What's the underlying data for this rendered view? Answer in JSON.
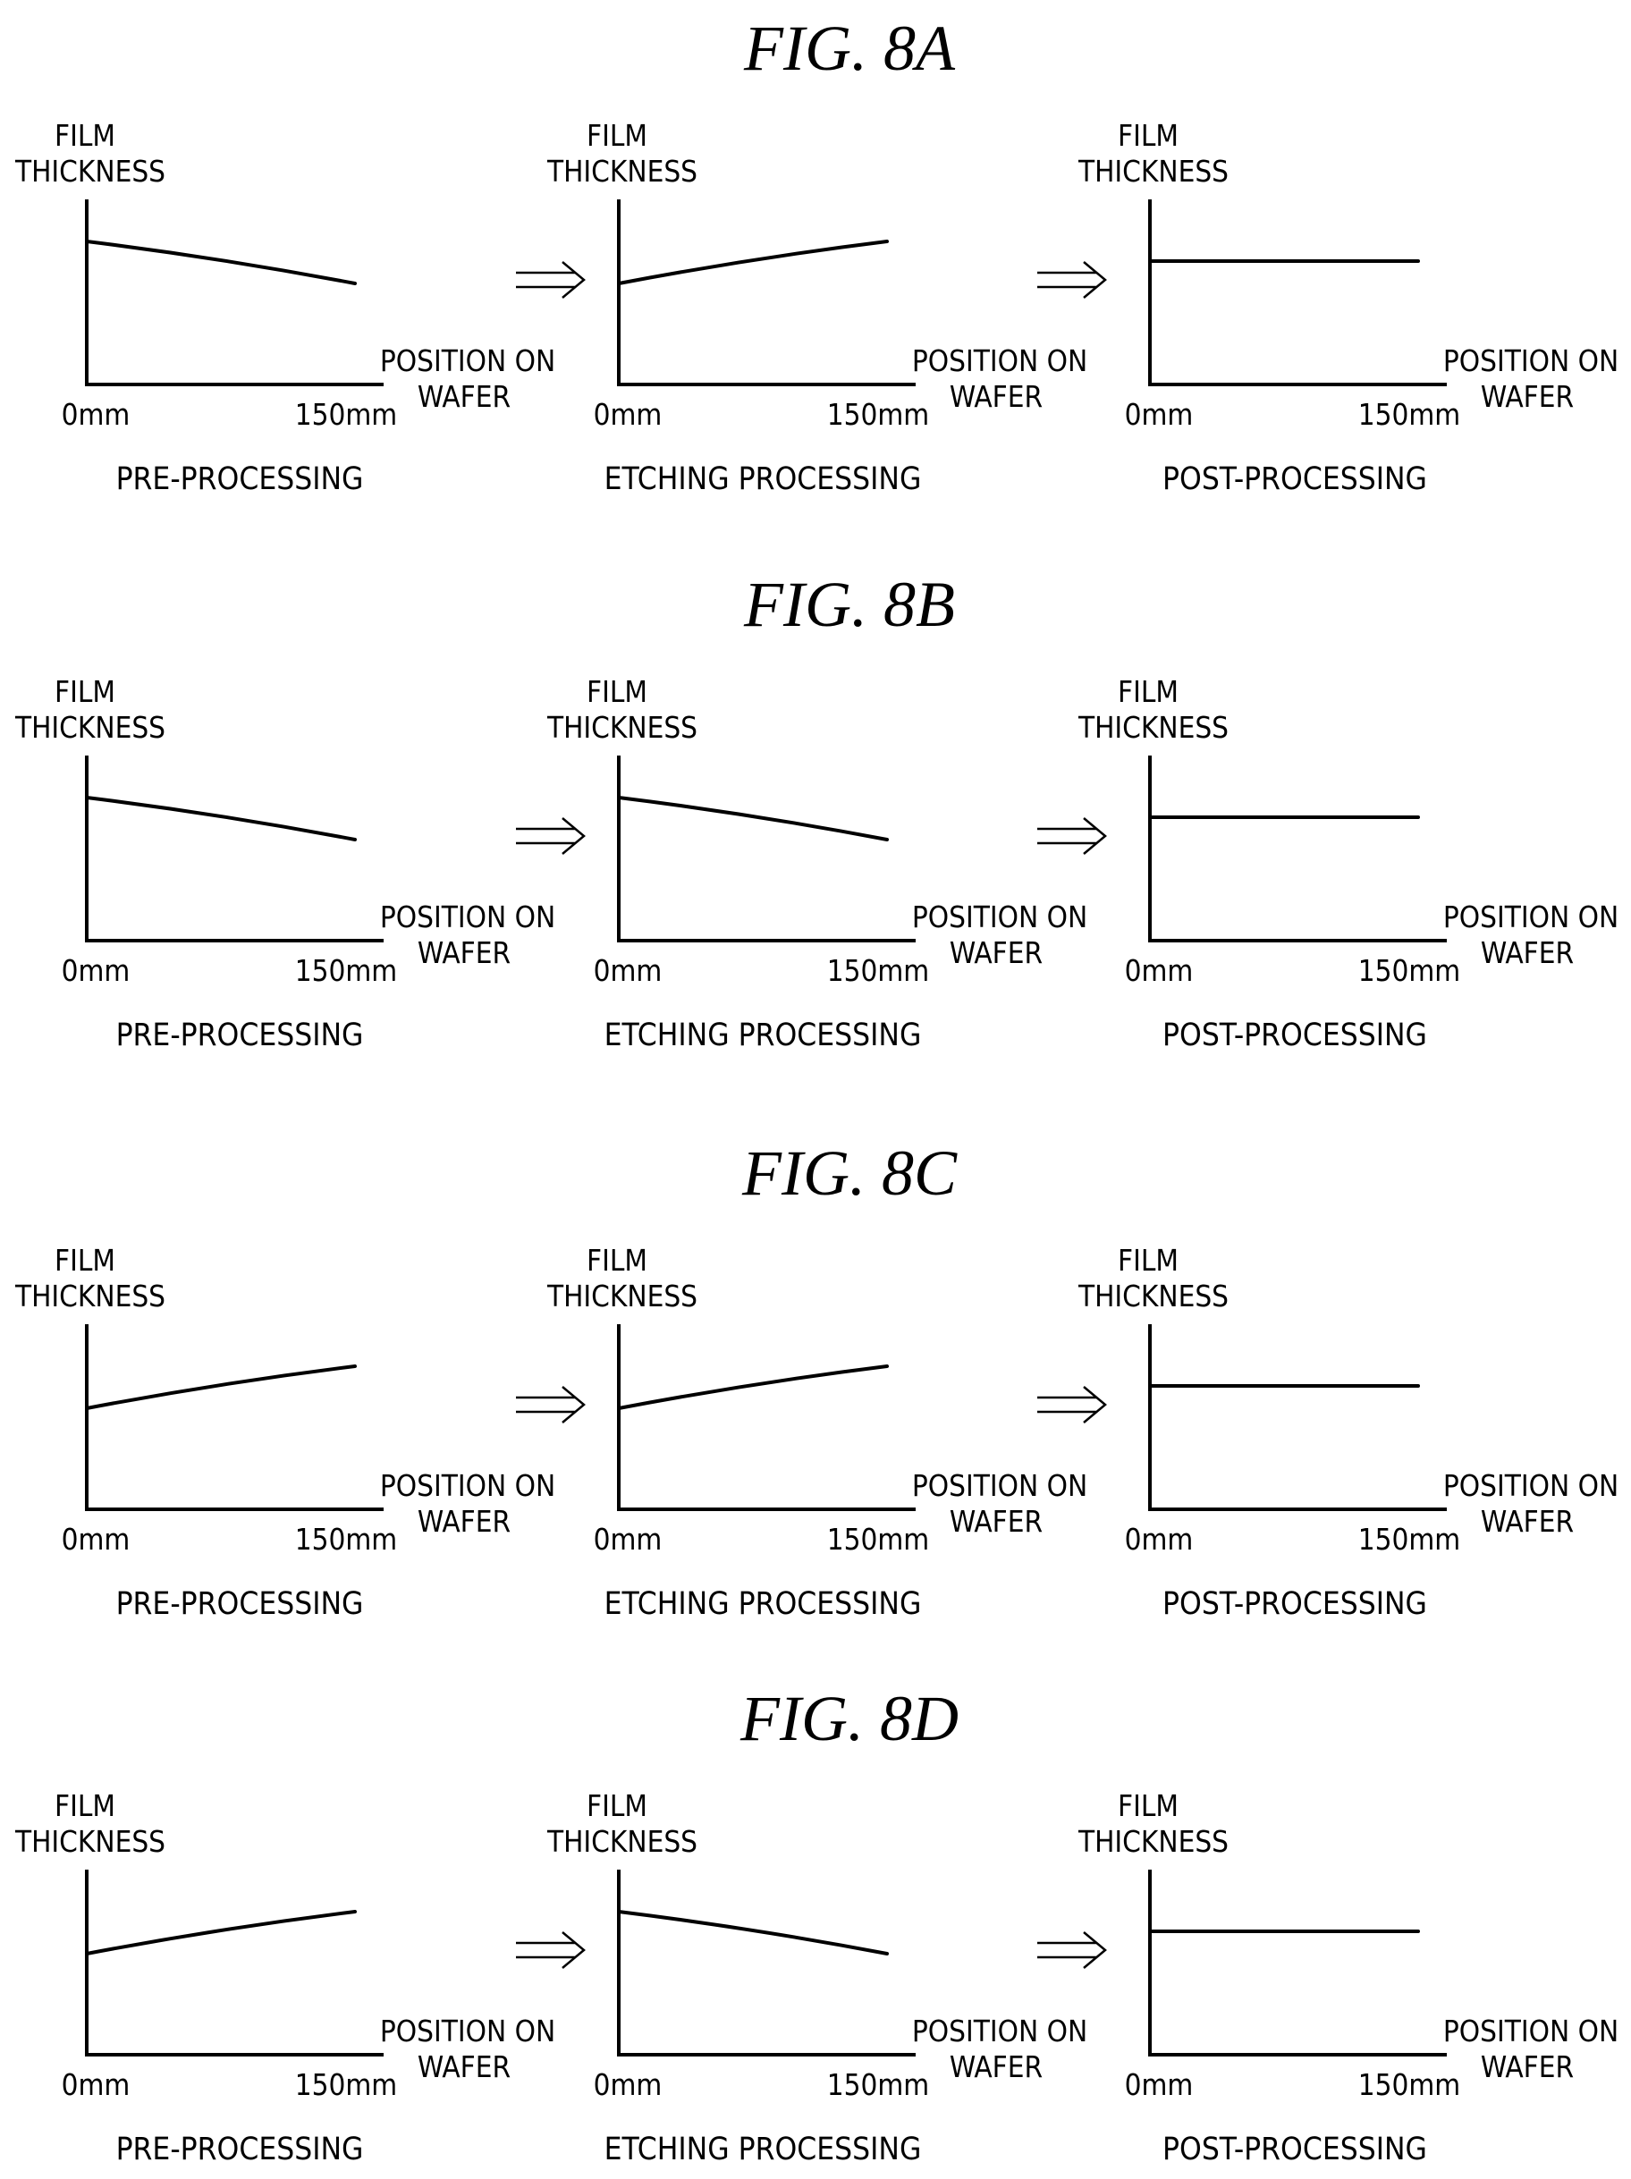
{
  "labels": {
    "y_axis_line1": "FILM",
    "y_axis_line2": "THICKNESS",
    "x_axis_line1": "POSITION ON",
    "x_axis_line2": "WAFER",
    "x_start": "0mm",
    "x_end": "150mm"
  },
  "stages": [
    "PRE-PROCESSING",
    "ETCHING PROCESSING",
    "POST-PROCESSING"
  ],
  "figures": [
    {
      "title": "FIG. 8A",
      "profiles": [
        "decreasing",
        "increasing",
        "flat"
      ]
    },
    {
      "title": "FIG. 8B",
      "profiles": [
        "decreasing",
        "decreasing",
        "flat"
      ]
    },
    {
      "title": "FIG. 8C",
      "profiles": [
        "increasing",
        "increasing",
        "flat"
      ]
    },
    {
      "title": "FIG. 8D",
      "profiles": [
        "increasing",
        "decreasing",
        "flat"
      ]
    }
  ],
  "icons": {
    "process_arrow": "double-arrow-right-icon"
  }
}
